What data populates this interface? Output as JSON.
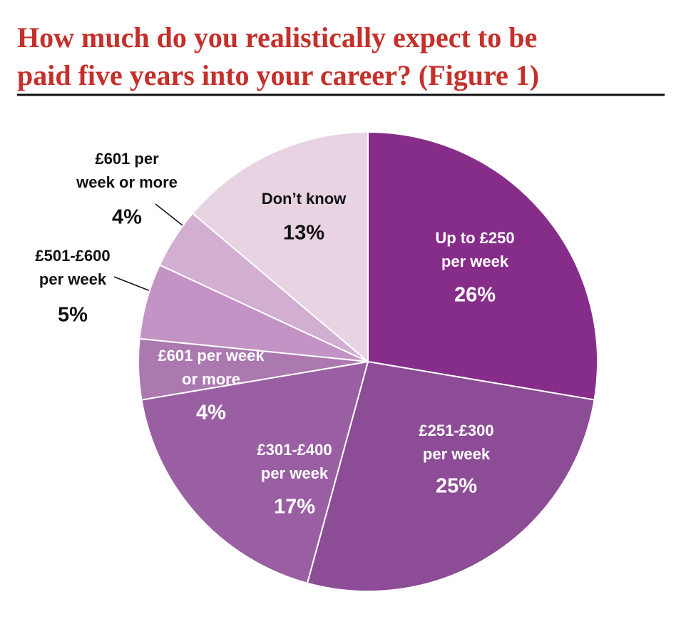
{
  "chart_data": {
    "type": "pie",
    "title": [
      "How much do you realistically expect to be",
      "paid five years into your career? (Figure 1)"
    ],
    "categories": [
      [
        "Up to £250",
        "per week"
      ],
      [
        "£251-£300",
        "per week"
      ],
      [
        "£301-£400",
        "per week"
      ],
      [
        "£601 per week",
        "or more"
      ],
      [
        "£501-£600",
        "per week"
      ],
      [
        "£601 per",
        "week or more"
      ],
      [
        "Don’t know"
      ]
    ],
    "values": [
      26,
      25,
      17,
      4,
      5,
      4,
      13
    ],
    "value_labels": [
      "26%",
      "25%",
      "17%",
      "4%",
      "5%",
      "4%",
      "13%"
    ],
    "colors": [
      "#862d8a",
      "#8d4c96",
      "#9a5fa3",
      "#ab78b0",
      "#c293c4",
      "#d2aed2",
      "#e8d3e2"
    ]
  }
}
